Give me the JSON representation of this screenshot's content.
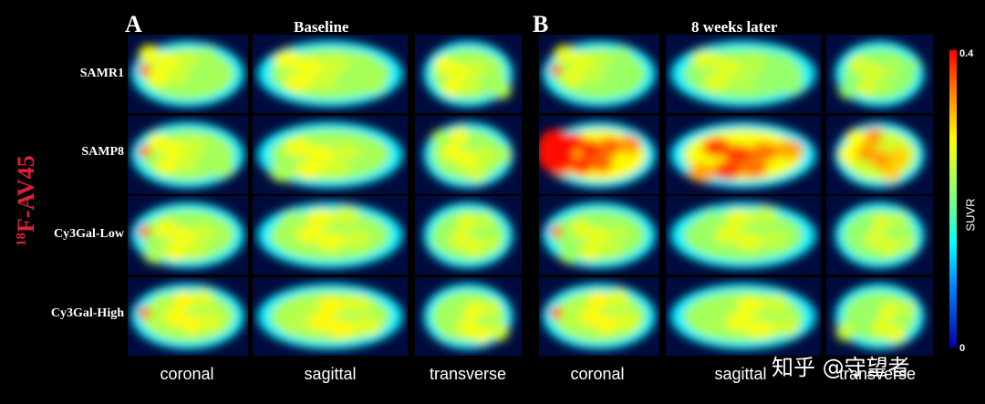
{
  "tracer_label": {
    "super": "18",
    "text": "F-AV45"
  },
  "panels": [
    {
      "letter": "A",
      "title": "Baseline",
      "views": [
        "coronal",
        "sagittal",
        "transverse"
      ]
    },
    {
      "letter": "B",
      "title": "8 weeks later",
      "views": [
        "coronal",
        "sagittal",
        "transverse"
      ]
    }
  ],
  "rows": [
    "SAMR1",
    "SAMP8",
    "Cy3Gal-Low",
    "Cy3Gal-High"
  ],
  "colorbar": {
    "label": "SUVR",
    "max": "0.4",
    "min": "0"
  },
  "watermark": "知乎 @守望者",
  "colors": {
    "background": "#000000",
    "tracer": "#e0203a"
  },
  "image_levels": [
    [
      [
        0.3,
        0.3,
        0.3
      ],
      [
        0.25,
        0.22,
        0.2
      ]
    ],
    [
      [
        0.3,
        0.3,
        0.3
      ],
      [
        0.9,
        0.85,
        0.6
      ]
    ],
    [
      [
        0.3,
        0.3,
        0.25
      ],
      [
        0.25,
        0.25,
        0.22
      ]
    ],
    [
      [
        0.35,
        0.35,
        0.3
      ],
      [
        0.35,
        0.3,
        0.25
      ]
    ]
  ]
}
